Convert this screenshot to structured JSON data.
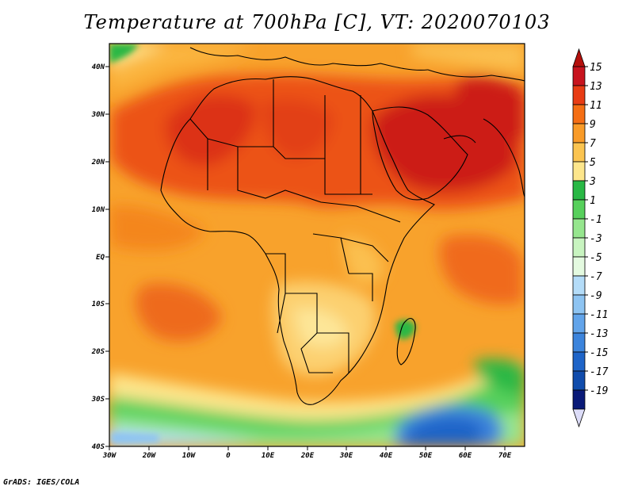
{
  "title": "Temperature at 700hPa [C], VT: 2020070103",
  "credit": "GrADS: IGES/COLA",
  "map": {
    "lat_ticks": [
      "40N",
      "30N",
      "20N",
      "10N",
      "EQ",
      "10S",
      "20S",
      "30S",
      "40S"
    ],
    "lon_ticks": [
      "30W",
      "20W",
      "10W",
      "0",
      "10E",
      "20E",
      "30E",
      "40E",
      "50E",
      "60E",
      "70E"
    ]
  },
  "colorbar": {
    "levels": [
      "15",
      "13",
      "11",
      "9",
      "7",
      "5",
      "3",
      "1",
      "-1",
      "-3",
      "-5",
      "-7",
      "-9",
      "-11",
      "-13",
      "-15",
      "-17",
      "-19"
    ],
    "colors": [
      "#c8141e",
      "#e83c14",
      "#f56e14",
      "#f99b28",
      "#fbc450",
      "#fde68c",
      "#29b845",
      "#57d05c",
      "#96e68e",
      "#c8f4c0",
      "#e4fae0",
      "#b4dcf8",
      "#8ec4f2",
      "#62a4ea",
      "#3c84dc",
      "#1e64c8",
      "#104cac",
      "#0a1a78"
    ],
    "top_triangle_color": "#b4100c",
    "bottom_triangle_color": "#dcdcf8"
  }
}
